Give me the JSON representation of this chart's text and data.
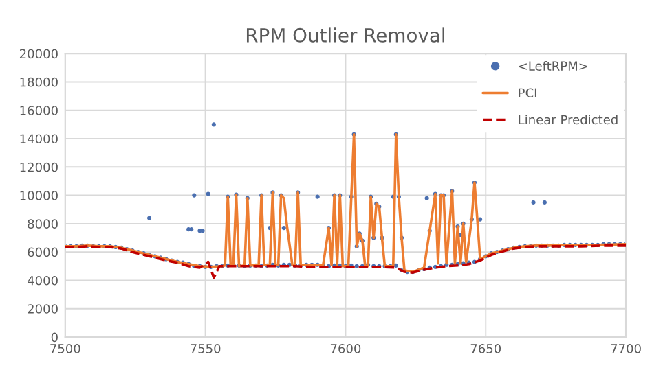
{
  "chart_data": {
    "type": "scatter",
    "title": "RPM Outlier Removal",
    "xlim": [
      7500,
      7700
    ],
    "xticks": [
      7500,
      7550,
      7600,
      7650,
      7700
    ],
    "ylim": [
      0,
      20000
    ],
    "yticks": [
      0,
      2000,
      4000,
      6000,
      8000,
      10000,
      12000,
      14000,
      16000,
      18000,
      20000
    ],
    "grid": true,
    "legend": "top right",
    "series": [
      {
        "name": "<LeftRPM>",
        "marker": "circle",
        "color": "#4a6fb0",
        "x": [
          7500,
          7502,
          7504,
          7506,
          7508,
          7510,
          7512,
          7514,
          7516,
          7518,
          7520,
          7522,
          7524,
          7526,
          7528,
          7530,
          7532,
          7534,
          7536,
          7538,
          7540,
          7542,
          7544,
          7546,
          7548,
          7550,
          7552,
          7554,
          7556,
          7558,
          7560,
          7562,
          7564,
          7566,
          7568,
          7570,
          7572,
          7574,
          7576,
          7578,
          7580,
          7582,
          7584,
          7586,
          7588,
          7590,
          7592,
          7594,
          7596,
          7598,
          7600,
          7602,
          7604,
          7606,
          7608,
          7610,
          7612,
          7614,
          7616,
          7618,
          7620,
          7622,
          7624,
          7626,
          7628,
          7630,
          7632,
          7634,
          7636,
          7638,
          7640,
          7642,
          7644,
          7646,
          7648,
          7650,
          7652,
          7654,
          7656,
          7658,
          7660,
          7662,
          7664,
          7666,
          7668,
          7670,
          7672,
          7674,
          7676,
          7678,
          7680,
          7682,
          7684,
          7686,
          7688,
          7690,
          7692,
          7694,
          7696,
          7698,
          7700,
          7530,
          7544,
          7545,
          7548,
          7549,
          7546,
          7551,
          7553,
          7558,
          7561,
          7565,
          7570,
          7573,
          7574,
          7577,
          7578,
          7583,
          7590,
          7594,
          7596,
          7598,
          7602,
          7603,
          7604,
          7605,
          7606,
          7609,
          7610,
          7611,
          7612,
          7613,
          7617,
          7618,
          7619,
          7620,
          7629,
          7630,
          7632,
          7634,
          7635,
          7638,
          7640,
          7641,
          7642,
          7645,
          7646,
          7648,
          7667,
          7671
        ],
        "values": [
          6400,
          6400,
          6400,
          6450,
          6450,
          6400,
          6400,
          6400,
          6400,
          6350,
          6300,
          6200,
          6100,
          6000,
          5900,
          5800,
          5700,
          5600,
          5500,
          5400,
          5300,
          5250,
          5150,
          5000,
          5000,
          4950,
          4950,
          5000,
          5000,
          5050,
          5100,
          5050,
          5000,
          5050,
          5050,
          5000,
          5050,
          5100,
          5050,
          5100,
          5100,
          5050,
          5050,
          5100,
          5100,
          5100,
          5050,
          5000,
          5050,
          5050,
          5000,
          5050,
          5000,
          5000,
          5100,
          5000,
          5000,
          5000,
          5000,
          5050,
          4700,
          4600,
          4600,
          4700,
          4800,
          4900,
          4950,
          5000,
          5100,
          5100,
          5150,
          5200,
          5250,
          5300,
          5500,
          5700,
          5900,
          6000,
          6100,
          6200,
          6300,
          6350,
          6400,
          6400,
          6450,
          6450,
          6450,
          6450,
          6450,
          6500,
          6500,
          6500,
          6500,
          6500,
          6500,
          6500,
          6550,
          6550,
          6550,
          6550,
          6550,
          8400,
          7600,
          7600,
          7500,
          7500,
          10000,
          10100,
          15000,
          9900,
          10050,
          9800,
          10000,
          7700,
          10200,
          10000,
          7700,
          10200,
          9900,
          7700,
          10000,
          10000,
          9900,
          14300,
          6400,
          7300,
          6800,
          9900,
          7000,
          9400,
          9200,
          7000,
          9900,
          14300,
          9900,
          7000,
          9800,
          7500,
          10100,
          10000,
          10000,
          10300,
          7800,
          7200,
          8000,
          8300,
          10900,
          8300,
          9500,
          9500
        ]
      },
      {
        "name": "PCI",
        "type": "line",
        "line_style": "solid",
        "color": "#ed7d31",
        "x": [
          7500,
          7504,
          7508,
          7512,
          7516,
          7520,
          7524,
          7528,
          7532,
          7536,
          7540,
          7544,
          7548,
          7552,
          7556,
          7557,
          7558,
          7559,
          7560,
          7561,
          7562,
          7564,
          7565,
          7566,
          7569,
          7570,
          7571,
          7573,
          7574,
          7575,
          7576,
          7577,
          7578,
          7579,
          7581,
          7582,
          7583,
          7584,
          7592,
          7594,
          7595,
          7596,
          7597,
          7598,
          7599,
          7601,
          7603,
          7604,
          7605,
          7606,
          7607,
          7608,
          7609,
          7610,
          7611,
          7612,
          7613,
          7614,
          7617,
          7618,
          7619,
          7620,
          7621,
          7624,
          7628,
          7630,
          7632,
          7633,
          7634,
          7635,
          7636,
          7638,
          7639,
          7640,
          7641,
          7642,
          7643,
          7645,
          7646,
          7647,
          7648,
          7652,
          7656,
          7660,
          7664,
          7668,
          7672,
          7680,
          7690,
          7700
        ],
        "values": [
          6400,
          6400,
          6450,
          6400,
          6400,
          6300,
          6100,
          5900,
          5700,
          5500,
          5300,
          5150,
          5000,
          4950,
          5000,
          5050,
          9900,
          5100,
          5050,
          10050,
          5000,
          5050,
          9800,
          5050,
          5050,
          10000,
          5100,
          5100,
          10200,
          5100,
          5100,
          10000,
          9800,
          8000,
          5100,
          5100,
          10200,
          5100,
          5100,
          7700,
          5100,
          10000,
          5100,
          10000,
          5000,
          5000,
          14300,
          6400,
          7300,
          6800,
          5000,
          5000,
          9900,
          7000,
          9400,
          9200,
          7000,
          5000,
          5000,
          14300,
          9900,
          7000,
          4700,
          4600,
          4900,
          7500,
          10100,
          5200,
          10000,
          10000,
          5200,
          10300,
          5200,
          7800,
          5200,
          8000,
          5300,
          8300,
          10900,
          8300,
          5500,
          5900,
          6100,
          6300,
          6400,
          6450,
          6450,
          6500,
          6500,
          6550
        ]
      },
      {
        "name": "Linear Predicted",
        "type": "line",
        "line_style": "dashed",
        "color": "#c00000",
        "x": [
          7500,
          7504,
          7508,
          7512,
          7516,
          7520,
          7524,
          7528,
          7532,
          7536,
          7540,
          7544,
          7548,
          7551,
          7553,
          7555,
          7558,
          7564,
          7570,
          7576,
          7582,
          7588,
          7594,
          7600,
          7606,
          7612,
          7618,
          7621,
          7624,
          7628,
          7632,
          7636,
          7640,
          7644,
          7648,
          7652,
          7656,
          7660,
          7664,
          7668,
          7676,
          7684,
          7692,
          7700
        ],
        "values": [
          6350,
          6350,
          6400,
          6350,
          6350,
          6250,
          6000,
          5800,
          5600,
          5400,
          5250,
          5000,
          4900,
          5300,
          4200,
          5000,
          5000,
          5000,
          5000,
          5000,
          5000,
          4950,
          4950,
          4950,
          4950,
          4950,
          4900,
          4600,
          4550,
          4750,
          4900,
          5000,
          5050,
          5150,
          5400,
          5800,
          6050,
          6250,
          6350,
          6400,
          6400,
          6400,
          6450,
          6450
        ]
      }
    ]
  }
}
